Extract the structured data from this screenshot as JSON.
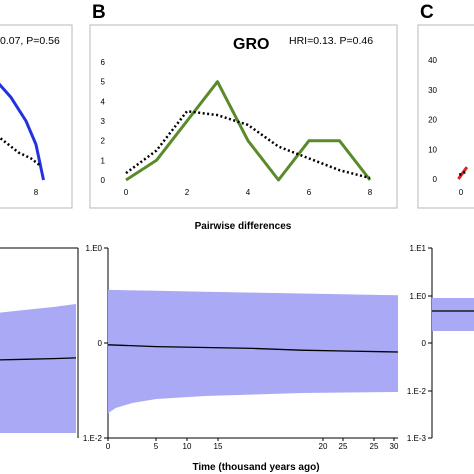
{
  "panel_letters": {
    "b": "B",
    "c": "C"
  },
  "pairwise_label": "Pairwise differences",
  "time_label": "Time (thousand years ago)",
  "colors": {
    "gro": "#5a8a2a",
    "left": "#2233dd",
    "right": "#dd2222",
    "band": "#a9a9f5"
  },
  "chart_data": [
    {
      "type": "line",
      "panel": "A",
      "stat_text": "0.07, P=0.56",
      "x_ticks": [
        "8"
      ],
      "series": [
        {
          "x": [
            4.6,
            6.0,
            7.2,
            8.0,
            8.6
          ],
          "y": [
            5.2,
            4.2,
            3.0,
            1.8,
            0.0
          ]
        },
        {
          "x": [
            4.6,
            5.6,
            6.6,
            7.6,
            8.4
          ],
          "y": [
            2.4,
            1.9,
            1.4,
            1.1,
            0.7
          ]
        }
      ]
    },
    {
      "type": "line",
      "panel": "B",
      "title": "GRO",
      "stat_text": "HRI=0.13. P=0.46",
      "x_ticks": [
        "0",
        "2",
        "4",
        "6",
        "8"
      ],
      "y_ticks": [
        "0",
        "1",
        "2",
        "3",
        "4",
        "5",
        "6"
      ],
      "xlim": [
        0,
        8
      ],
      "ylim": [
        0,
        6
      ],
      "series": [
        {
          "x": [
            0,
            1,
            2,
            3,
            4,
            5,
            6,
            7,
            8
          ],
          "y": [
            0,
            1,
            3,
            5,
            2,
            0,
            2,
            2,
            0
          ]
        },
        {
          "x": [
            0,
            1,
            2,
            3,
            4,
            5,
            6,
            7,
            8
          ],
          "y": [
            0.35,
            1.5,
            3.5,
            3.3,
            2.8,
            1.7,
            1.1,
            0.5,
            0.1
          ]
        }
      ]
    },
    {
      "type": "line",
      "panel": "C",
      "x_ticks": [
        "0"
      ],
      "y_ticks": [
        "40",
        "30",
        "20",
        "10",
        "0"
      ],
      "ylim": [
        0,
        40
      ],
      "series": [
        {
          "x": [
            -0.15,
            0.35
          ],
          "y": [
            0.0,
            4.0
          ]
        },
        {
          "x": [
            -0.1,
            0.35
          ],
          "y": [
            1.4,
            2.6
          ]
        }
      ]
    },
    {
      "type": "area",
      "panel": "A-bottom",
      "xlim": [
        0,
        30
      ],
      "series": [
        {
          "x": [
            0,
            10,
            20,
            28
          ],
          "y": [
            1.1,
            1.15,
            1.2,
            1.25
          ],
          "lo": [
            0.03,
            0.03,
            0.03,
            0.02
          ],
          "hi": [
            2.8,
            2.9,
            3.0,
            3.1
          ]
        }
      ]
    },
    {
      "type": "area",
      "panel": "B-bottom",
      "y_ticks": [
        "1.E0",
        "0",
        "1.E-2"
      ],
      "x_ticks": [
        "0",
        "5",
        "10",
        "15",
        "20",
        "25",
        "25",
        "30"
      ],
      "xlim": [
        0,
        30
      ],
      "xlabel": "Time (thousand years ago)",
      "series": [
        {
          "x": [
            0,
            5,
            10,
            15,
            20,
            25,
            30
          ],
          "y": [
            -0.02,
            -0.04,
            -0.05,
            -0.06,
            -0.08,
            -0.09,
            -0.1
          ],
          "lo": [
            -0.78,
            -0.6,
            -0.56,
            -0.55,
            -0.54,
            -0.54,
            -0.54
          ],
          "hi": [
            0.59,
            0.58,
            0.57,
            0.56,
            0.55,
            0.54,
            0.53
          ]
        }
      ]
    },
    {
      "type": "area",
      "panel": "C-bottom",
      "y_ticks": [
        "1.E1",
        "1.E0",
        "0",
        "1.E-2",
        "1.E-3"
      ],
      "series": [
        {
          "x": [
            0,
            1
          ],
          "y": [
            0.2,
            0.2
          ],
          "lo": [
            -0.5,
            -0.5
          ],
          "hi": [
            0.85,
            0.85
          ]
        }
      ]
    }
  ]
}
